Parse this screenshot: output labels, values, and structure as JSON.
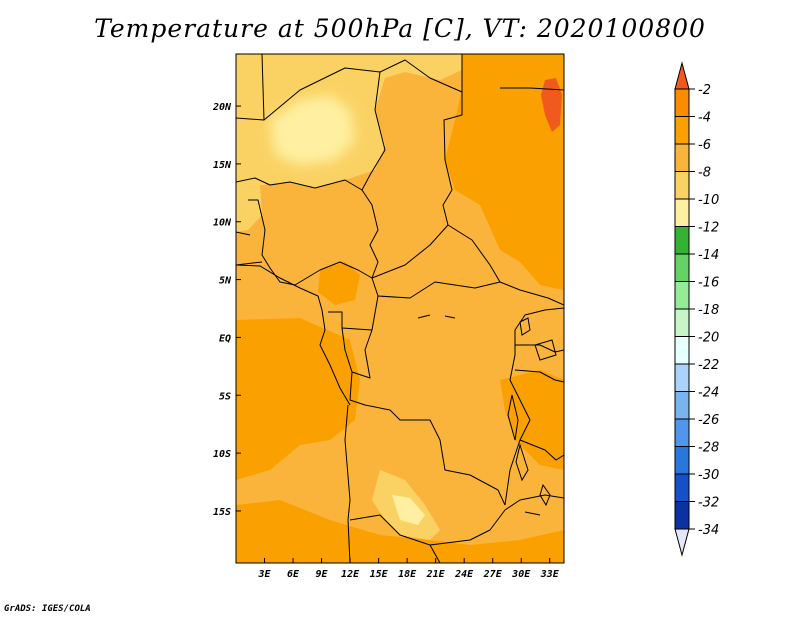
{
  "title": "Temperature at 500hPa [C], VT: 2020100800",
  "credit": "GrADS: IGES/COLA",
  "chart_data": {
    "type": "heatmap",
    "title": "Temperature at 500hPa [C], VT: 2020100800",
    "units": "C",
    "valid_time": "2020100800",
    "lon_range": [
      0,
      34.5
    ],
    "lat_range": [
      -19.5,
      24.5
    ],
    "x_ticks": [
      "3E",
      "6E",
      "9E",
      "12E",
      "15E",
      "18E",
      "21E",
      "24E",
      "27E",
      "30E",
      "33E"
    ],
    "x_tick_values": [
      3,
      6,
      9,
      12,
      15,
      18,
      21,
      24,
      27,
      30,
      33
    ],
    "y_ticks": [
      "20N",
      "15N",
      "10N",
      "5N",
      "EQ",
      "5S",
      "10S",
      "15S"
    ],
    "y_tick_values": [
      20,
      15,
      10,
      5,
      0,
      -5,
      -10,
      -15
    ],
    "colorbar": {
      "labels": [
        "-2",
        "-4",
        "-6",
        "-8",
        "-10",
        "-12",
        "-14",
        "-16",
        "-18",
        "-20",
        "-22",
        "-24",
        "-26",
        "-28",
        "-30",
        "-32",
        "-34"
      ],
      "values": [
        -2,
        -4,
        -6,
        -8,
        -10,
        -12,
        -14,
        -16,
        -18,
        -20,
        -22,
        -24,
        -26,
        -28,
        -30,
        -32,
        -34
      ],
      "colors": [
        "#f05a1e",
        "#fa8c00",
        "#faa000",
        "#fab43c",
        "#fad264",
        "#fef0a0",
        "#32b432",
        "#64d264",
        "#96eb96",
        "#c8f5c8",
        "#e6ffff",
        "#aad2fa",
        "#78b4f0",
        "#5096eb",
        "#2878dc",
        "#1450c8",
        "#0a32a0",
        "#0a146e",
        "#e6e6fa"
      ]
    }
  }
}
